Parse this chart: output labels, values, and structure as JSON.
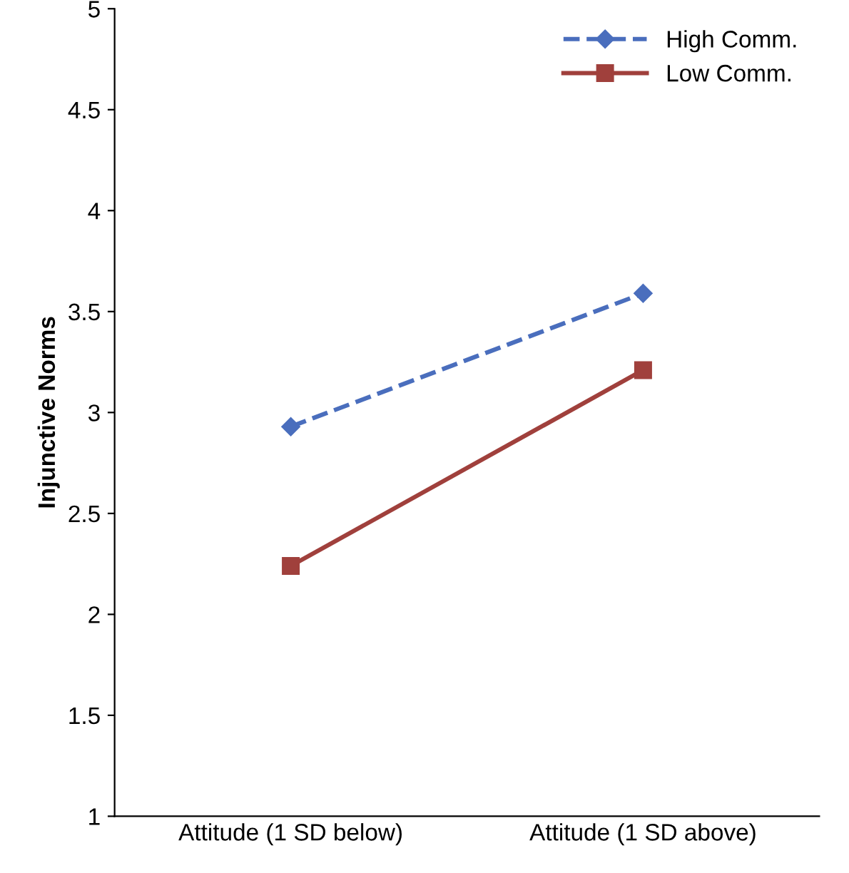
{
  "chart_data": {
    "type": "line",
    "ylabel": "Injunctive Norms",
    "categories": [
      "Attitude (1 SD below)",
      "Attitude (1 SD above)"
    ],
    "series": [
      {
        "name": "High Comm.",
        "color": "#4a6ebd",
        "values": [
          2.93,
          3.59
        ],
        "marker": "diamond",
        "line_style": "dashed"
      },
      {
        "name": "Low Comm.",
        "color": "#a0403c",
        "values": [
          2.24,
          3.21
        ],
        "marker": "square",
        "line_style": "solid"
      }
    ],
    "ylim": [
      1,
      5
    ],
    "yticks": [
      1,
      1.5,
      2,
      2.5,
      3,
      3.5,
      4,
      4.5,
      5
    ],
    "grid": false,
    "legend": "top right"
  }
}
